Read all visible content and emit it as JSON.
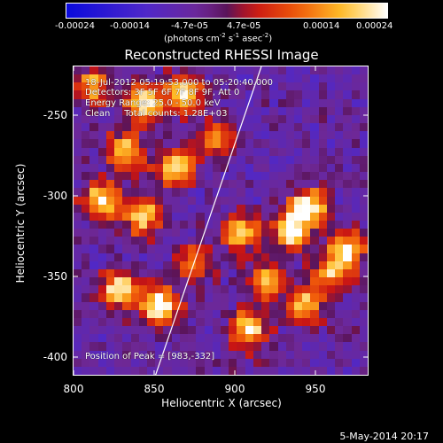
{
  "colorbar": {
    "ticks": [
      "-0.00024",
      "-0.00014",
      "-4.7e-05",
      "4.7e-05",
      "0.00014",
      "0.00024"
    ],
    "units": "(photons cm",
    "units_exp1": "-2",
    "units_mid": " s",
    "units_exp2": "-1",
    "units_mid2": " asec",
    "units_exp3": "-2",
    "units_end": ")"
  },
  "title": "Reconstructed RHESSI Image",
  "info": {
    "line1": "18-Jul-2012 05:19:53.000 to 05:20:40.000",
    "line2": "Detectors: 3F 5F 6F 7F 8F 9F, Att 0",
    "line3": "Energy Range: 25.0 - 50.0 keV",
    "line4": "Clean     Total counts: 1.28E+03",
    "peak": "Position of Peak = [983,-332]"
  },
  "axes": {
    "xlabel": "Heliocentric X (arcsec)",
    "ylabel": "Heliocentric Y (arcsec)",
    "xticks": [
      "800",
      "850",
      "900",
      "950"
    ],
    "yticks": [
      "-250",
      "-300",
      "-350",
      "-400"
    ]
  },
  "datestamp": "5-May-2014 20:17",
  "colors": {
    "background": "#000000",
    "axis": "#ffffff"
  }
}
